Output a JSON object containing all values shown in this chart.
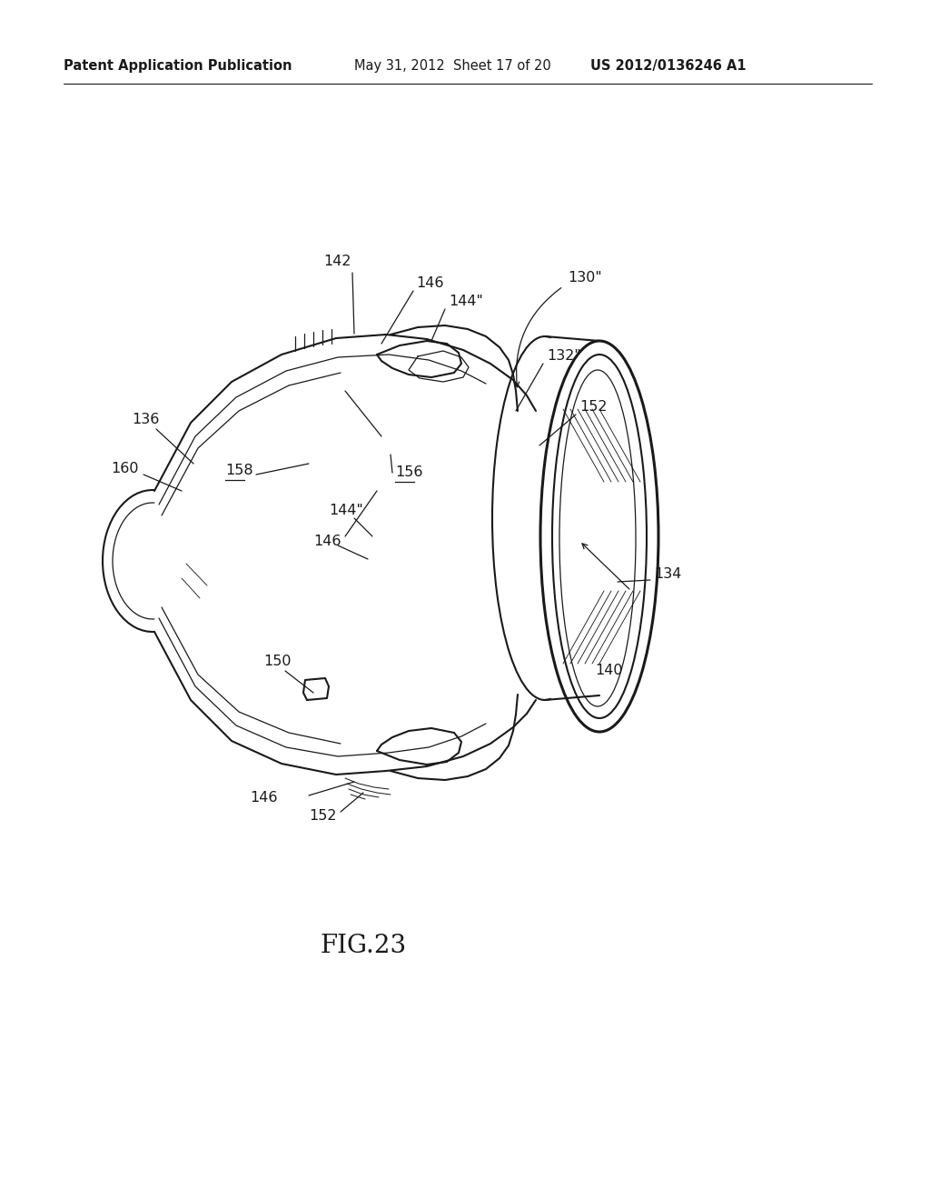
{
  "bg_color": "#ffffff",
  "line_color": "#1a1a1a",
  "header_left": "Patent Application Publication",
  "header_center": "May 31, 2012  Sheet 17 of 20",
  "header_right": "US 2012/0136246 A1",
  "fig_label": "FIG.23",
  "lw_main": 1.5,
  "lw_thin": 0.9,
  "lw_thick": 2.2,
  "label_fs": 11.5,
  "header_fs": 10.5,
  "fig_fs": 20
}
